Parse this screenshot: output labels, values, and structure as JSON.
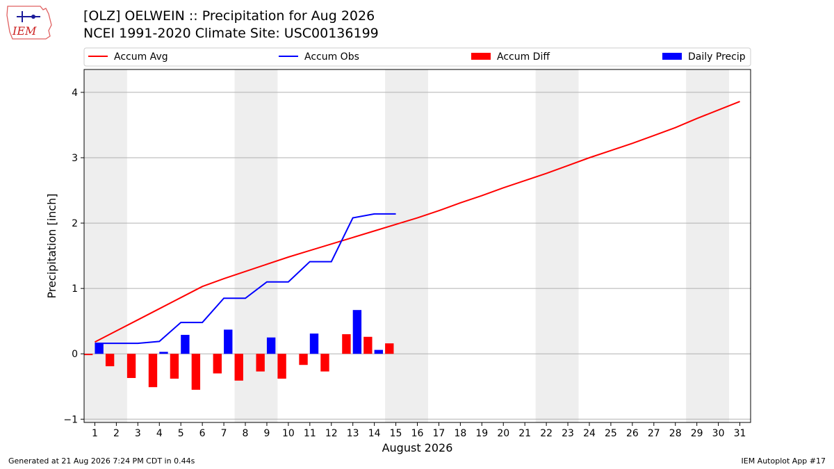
{
  "header": {
    "title": "[OLZ] OELWEIN :: Precipitation for Aug 2026",
    "subtitle": "NCEI 1991-2020 Climate Site: USC00136199",
    "logo_text": "IEM"
  },
  "footer": {
    "left": "Generated at 21 Aug 2026 7:24 PM CDT in 0.44s",
    "right": "IEM Autoplot App #17"
  },
  "colors": {
    "accum_avg": "#ff0000",
    "accum_obs": "#0000ff",
    "accum_diff": "#ff0000",
    "daily_precip": "#0000ff",
    "weekend_shade": "#eeeeee",
    "grid": "#b0b0b0"
  },
  "chart_data": {
    "type": "bar",
    "xlabel": "August 2026",
    "ylabel": "Precipitation [inch]",
    "xlim": [
      0.5,
      31.5
    ],
    "ylim": [
      -1.05,
      4.35
    ],
    "yticks": [
      -1,
      0,
      1,
      2,
      3,
      4
    ],
    "x": [
      1,
      2,
      3,
      4,
      5,
      6,
      7,
      8,
      9,
      10,
      11,
      12,
      13,
      14,
      15,
      16,
      17,
      18,
      19,
      20,
      21,
      22,
      23,
      24,
      25,
      26,
      27,
      28,
      29,
      30,
      31
    ],
    "grid": "horizontal",
    "legend_placement": "top",
    "legend": [
      "Accum Avg",
      "Accum Obs",
      "Accum Diff",
      "Daily Precip"
    ],
    "weekend_spans": [
      [
        1,
        2
      ],
      [
        8,
        9
      ],
      [
        15,
        16
      ],
      [
        22,
        23
      ],
      [
        29,
        30
      ]
    ],
    "series": [
      {
        "name": "Accum Avg",
        "type": "line",
        "x": [
          1,
          2,
          3,
          4,
          5,
          6,
          7,
          8,
          9,
          10,
          11,
          12,
          13,
          14,
          15,
          16,
          17,
          18,
          19,
          20,
          21,
          22,
          23,
          24,
          25,
          26,
          27,
          28,
          29,
          30,
          31
        ],
        "values": [
          0.18,
          0.35,
          0.52,
          0.69,
          0.86,
          1.03,
          1.15,
          1.26,
          1.37,
          1.48,
          1.58,
          1.68,
          1.78,
          1.88,
          1.98,
          2.08,
          2.19,
          2.31,
          2.42,
          2.54,
          2.65,
          2.76,
          2.88,
          3.0,
          3.11,
          3.22,
          3.34,
          3.46,
          3.6,
          3.73,
          3.86
        ]
      },
      {
        "name": "Accum Obs",
        "type": "line",
        "x": [
          1,
          2,
          3,
          4,
          5,
          6,
          7,
          8,
          9,
          10,
          11,
          12,
          13,
          14,
          15
        ],
        "values": [
          0.16,
          0.16,
          0.16,
          0.19,
          0.48,
          0.48,
          0.85,
          0.85,
          1.1,
          1.1,
          1.41,
          1.41,
          2.08,
          2.14,
          2.14
        ]
      },
      {
        "name": "Accum Diff",
        "type": "bar",
        "x": [
          1,
          2,
          3,
          4,
          5,
          6,
          7,
          8,
          9,
          10,
          11,
          12,
          13,
          14,
          15
        ],
        "values": [
          -0.02,
          -0.19,
          -0.37,
          -0.51,
          -0.38,
          -0.55,
          -0.3,
          -0.41,
          -0.27,
          -0.38,
          -0.17,
          -0.27,
          0.3,
          0.26,
          0.16
        ]
      },
      {
        "name": "Daily Precip",
        "type": "bar",
        "x": [
          1,
          2,
          3,
          4,
          5,
          6,
          7,
          8,
          9,
          10,
          11,
          12,
          13,
          14,
          15
        ],
        "values": [
          0.16,
          0,
          0,
          0.03,
          0.29,
          0,
          0.37,
          0,
          0.25,
          0,
          0.31,
          0,
          0.67,
          0.06,
          0
        ]
      }
    ]
  }
}
